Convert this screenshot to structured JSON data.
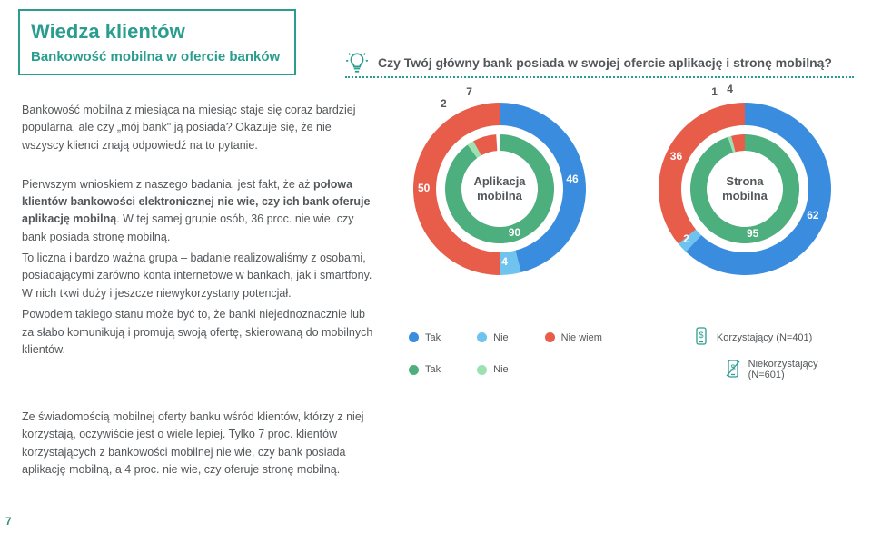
{
  "page_number": "7",
  "colors": {
    "teal": "#2a9d8f",
    "text": "#53575a",
    "blue": "#3a8dde",
    "lightblue": "#6fc3ef",
    "red": "#e85c4a",
    "green": "#4caf7d",
    "lightgreen": "#9fe0b3"
  },
  "header": {
    "title": "Wiedza klientów",
    "subtitle": "Bankowość mobilna w ofercie banków"
  },
  "question": "Czy Twój główny bank posiada w swojej ofercie aplikację i stronę mobilną?",
  "para1": "Bankowość mobilna z miesiąca na miesiąc staje się coraz bardziej popularna, ale czy „mój bank\" ją posiada? Okazuje się, że nie wszyscy klienci znają odpowiedź na to pytanie.",
  "para2_a": "Pierwszym wnioskiem z naszego badania, jest fakt, że aż ",
  "para2_b": "połowa klientów bankowości elektronicznej nie wie, czy ich bank oferuje aplikację mobilną",
  "para2_c": ". W tej samej grupie osób, 36 proc. nie wie, czy bank posiada stronę mobilną.",
  "para3": "To liczna i bardzo ważna grupa – badanie realizowaliśmy z osobami, posiadającymi zarówno konta internetowe w bankach, jak i smartfony. W nich tkwi duży i jeszcze niewykorzystany potencjał.",
  "para4": "Powodem takiego stanu może być to, że banki niejednoznacznie lub za słabo komunikują i promują swoją ofertę, skierowaną do mobilnych klientów.",
  "para5": "Ze świadomością mobilnej oferty banku wśród klientów, którzy z niej korzystają, oczywiście jest o wiele lepiej. Tylko 7 proc.  klientów korzystających z bankowości mobilnej nie wie, czy bank posiada aplikację mobilną, a 4 proc. nie wie, czy oferuje stronę mobilną.",
  "chart1": {
    "center": "Aplikacja\nmobilna",
    "outer": {
      "segments": [
        {
          "label": "46",
          "value": 46,
          "color": "#3a8dde"
        },
        {
          "label": "4",
          "value": 4,
          "color": "#6fc3ef"
        },
        {
          "label": "50",
          "value": 50,
          "color": "#e85c4a"
        }
      ]
    },
    "inner": {
      "segments": [
        {
          "label": "90",
          "value": 90,
          "color": "#4caf7d"
        },
        {
          "label": "2",
          "value": 2,
          "color": "#9fe0b3"
        },
        {
          "label": "7",
          "value": 7,
          "color": "#e85c4a"
        }
      ]
    }
  },
  "chart2": {
    "center": "Strona\nmobilna",
    "outer": {
      "segments": [
        {
          "label": "62",
          "value": 62,
          "color": "#3a8dde"
        },
        {
          "label": "2",
          "value": 2,
          "color": "#6fc3ef"
        },
        {
          "label": "36",
          "value": 36,
          "color": "#e85c4a"
        }
      ]
    },
    "inner": {
      "segments": [
        {
          "label": "95",
          "value": 95,
          "color": "#4caf7d"
        },
        {
          "label": "1",
          "value": 1,
          "color": "#9fe0b3"
        },
        {
          "label": "4",
          "value": 4,
          "color": "#e85c4a"
        }
      ]
    }
  },
  "legend": {
    "row1": [
      {
        "color": "#3a8dde",
        "label": "Tak"
      },
      {
        "color": "#6fc3ef",
        "label": "Nie"
      },
      {
        "color": "#e85c4a",
        "label": "Nie wiem"
      }
    ],
    "row2": [
      {
        "color": "#4caf7d",
        "label": "Tak"
      },
      {
        "color": "#9fe0b3",
        "label": "Nie"
      }
    ],
    "group1": "Korzystający (N=401)",
    "group2": "Niekorzystający (N=601)"
  }
}
